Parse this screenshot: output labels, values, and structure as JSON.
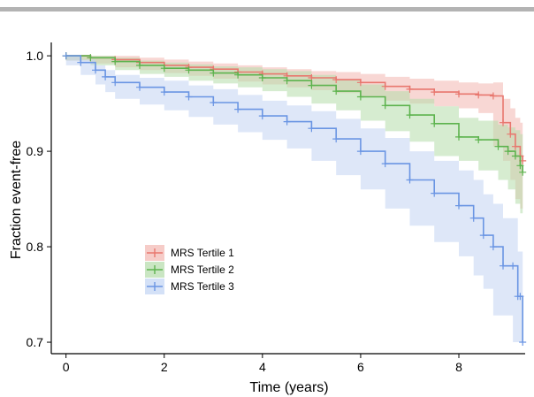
{
  "chart_data": {
    "type": "line",
    "xlabel": "Time (years)",
    "ylabel": "Fraction event-free",
    "xlim": [
      -0.3,
      9.35
    ],
    "ylim": [
      0.688,
      1.014
    ],
    "xticks": [
      "0",
      "2",
      "4",
      "6",
      "8"
    ],
    "yticks": [
      "0.7",
      "0.8",
      "0.9",
      "1.0"
    ],
    "legend_position": "lower-left",
    "series": [
      {
        "name": "MRS Tertile 1",
        "color": "#e8776e",
        "band_color": "#f2b6b1",
        "x": [
          0,
          0.5,
          1,
          1.5,
          2,
          2.5,
          3,
          3.5,
          4,
          4.5,
          5,
          5.5,
          6,
          6.5,
          7,
          7.5,
          8,
          8.4,
          8.7,
          8.9,
          9.05,
          9.15,
          9.25,
          9.3
        ],
        "y": [
          1.0,
          0.998,
          0.996,
          0.993,
          0.99,
          0.988,
          0.986,
          0.983,
          0.981,
          0.979,
          0.977,
          0.975,
          0.972,
          0.968,
          0.965,
          0.962,
          0.96,
          0.959,
          0.958,
          0.93,
          0.918,
          0.905,
          0.895,
          0.89
        ],
        "lower": [
          1.0,
          0.995,
          0.992,
          0.988,
          0.985,
          0.982,
          0.979,
          0.976,
          0.973,
          0.97,
          0.967,
          0.964,
          0.961,
          0.957,
          0.953,
          0.95,
          0.947,
          0.945,
          0.94,
          0.905,
          0.89,
          0.87,
          0.85,
          0.84
        ],
        "upper": [
          1.0,
          1.0,
          1.0,
          0.998,
          0.996,
          0.994,
          0.992,
          0.99,
          0.988,
          0.986,
          0.984,
          0.983,
          0.981,
          0.978,
          0.976,
          0.974,
          0.972,
          0.971,
          0.972,
          0.955,
          0.945,
          0.935,
          0.93,
          0.928
        ]
      },
      {
        "name": "MRS Tertile 2",
        "color": "#5db34e",
        "band_color": "#b4dca9",
        "x": [
          0,
          0.5,
          1,
          1.5,
          2,
          2.5,
          3,
          3.5,
          4,
          4.5,
          5,
          5.5,
          6,
          6.5,
          7,
          7.5,
          8,
          8.4,
          8.8,
          9.0,
          9.15,
          9.25,
          9.3
        ],
        "y": [
          1.0,
          0.998,
          0.994,
          0.99,
          0.987,
          0.985,
          0.982,
          0.98,
          0.977,
          0.974,
          0.969,
          0.963,
          0.957,
          0.948,
          0.938,
          0.929,
          0.915,
          0.912,
          0.905,
          0.9,
          0.895,
          0.885,
          0.878
        ],
        "lower": [
          1.0,
          0.995,
          0.99,
          0.985,
          0.981,
          0.978,
          0.974,
          0.971,
          0.967,
          0.963,
          0.957,
          0.95,
          0.943,
          0.932,
          0.921,
          0.91,
          0.895,
          0.89,
          0.88,
          0.87,
          0.86,
          0.845,
          0.835
        ],
        "upper": [
          1.0,
          1.0,
          0.998,
          0.995,
          0.993,
          0.991,
          0.989,
          0.988,
          0.986,
          0.984,
          0.98,
          0.975,
          0.97,
          0.963,
          0.955,
          0.947,
          0.935,
          0.932,
          0.928,
          0.925,
          0.922,
          0.918,
          0.915
        ]
      },
      {
        "name": "MRS Tertile 3",
        "color": "#6a95e3",
        "band_color": "#c2d4f3",
        "x": [
          0,
          0.3,
          0.6,
          0.8,
          1,
          1.5,
          2,
          2.5,
          3,
          3.5,
          4,
          4.5,
          5,
          5.5,
          6,
          6.5,
          7,
          7.5,
          8,
          8.3,
          8.5,
          8.7,
          8.9,
          9.1,
          9.2,
          9.25,
          9.3
        ],
        "y": [
          1.0,
          0.993,
          0.985,
          0.978,
          0.972,
          0.967,
          0.962,
          0.957,
          0.951,
          0.944,
          0.937,
          0.931,
          0.924,
          0.913,
          0.9,
          0.887,
          0.87,
          0.856,
          0.843,
          0.83,
          0.812,
          0.8,
          0.78,
          0.78,
          0.748,
          0.748,
          0.7
        ],
        "lower": [
          1.0,
          0.99,
          0.98,
          0.97,
          0.962,
          0.955,
          0.949,
          0.943,
          0.936,
          0.928,
          0.92,
          0.912,
          0.903,
          0.89,
          0.875,
          0.86,
          0.84,
          0.822,
          0.805,
          0.79,
          0.77,
          0.756,
          0.728,
          0.728,
          0.7,
          0.7,
          0.7
        ],
        "upper": [
          1.0,
          0.996,
          0.99,
          0.985,
          0.98,
          0.977,
          0.974,
          0.969,
          0.965,
          0.959,
          0.953,
          0.948,
          0.942,
          0.934,
          0.924,
          0.914,
          0.9,
          0.89,
          0.88,
          0.87,
          0.855,
          0.845,
          0.83,
          0.83,
          0.795,
          0.795,
          0.75
        ]
      }
    ]
  }
}
